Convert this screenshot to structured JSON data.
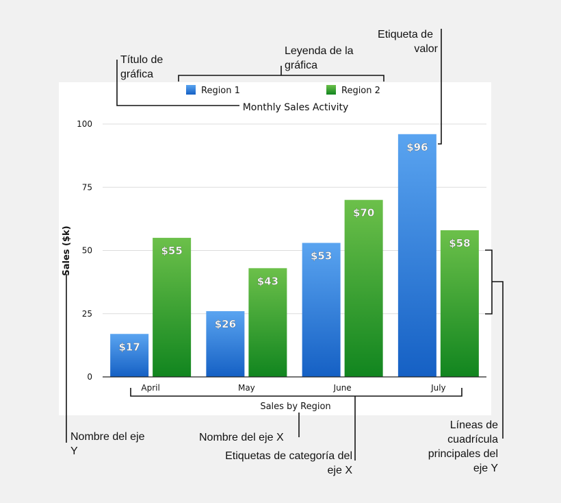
{
  "chart_data": {
    "type": "bar",
    "title": "Monthly Sales Activity",
    "xlabel": "Sales by Region",
    "ylabel": "Sales ($k)",
    "categories": [
      "April",
      "May",
      "June",
      "July"
    ],
    "series": [
      {
        "name": "Region 1",
        "values": [
          17,
          26,
          53,
          96
        ],
        "labels": [
          "$17",
          "$26",
          "$53",
          "$96"
        ],
        "color": "#2a78d6"
      },
      {
        "name": "Region 2",
        "values": [
          55,
          43,
          70,
          58
        ],
        "labels": [
          "$55",
          "$43",
          "$70",
          "$58"
        ],
        "color": "#2f9a36"
      }
    ],
    "ylim": [
      0,
      100
    ],
    "yticks": [
      "0",
      "25",
      "50",
      "75",
      "100"
    ],
    "grid": true,
    "legend_position": "top"
  },
  "annotations": {
    "chart_title": [
      "Título de",
      "gráfica"
    ],
    "legend": [
      "Leyenda de la",
      "gráfica"
    ],
    "value_label": [
      "Etiqueta de",
      "valor"
    ],
    "y_axis_name": [
      "Nombre del eje",
      "Y"
    ],
    "x_axis_name": [
      "Nombre del eje X"
    ],
    "x_category_labels": [
      "Etiquetas de categoría del",
      "eje X"
    ],
    "y_gridlines": [
      "Líneas de",
      "cuadrícula",
      "principales del",
      "eje Y"
    ]
  }
}
